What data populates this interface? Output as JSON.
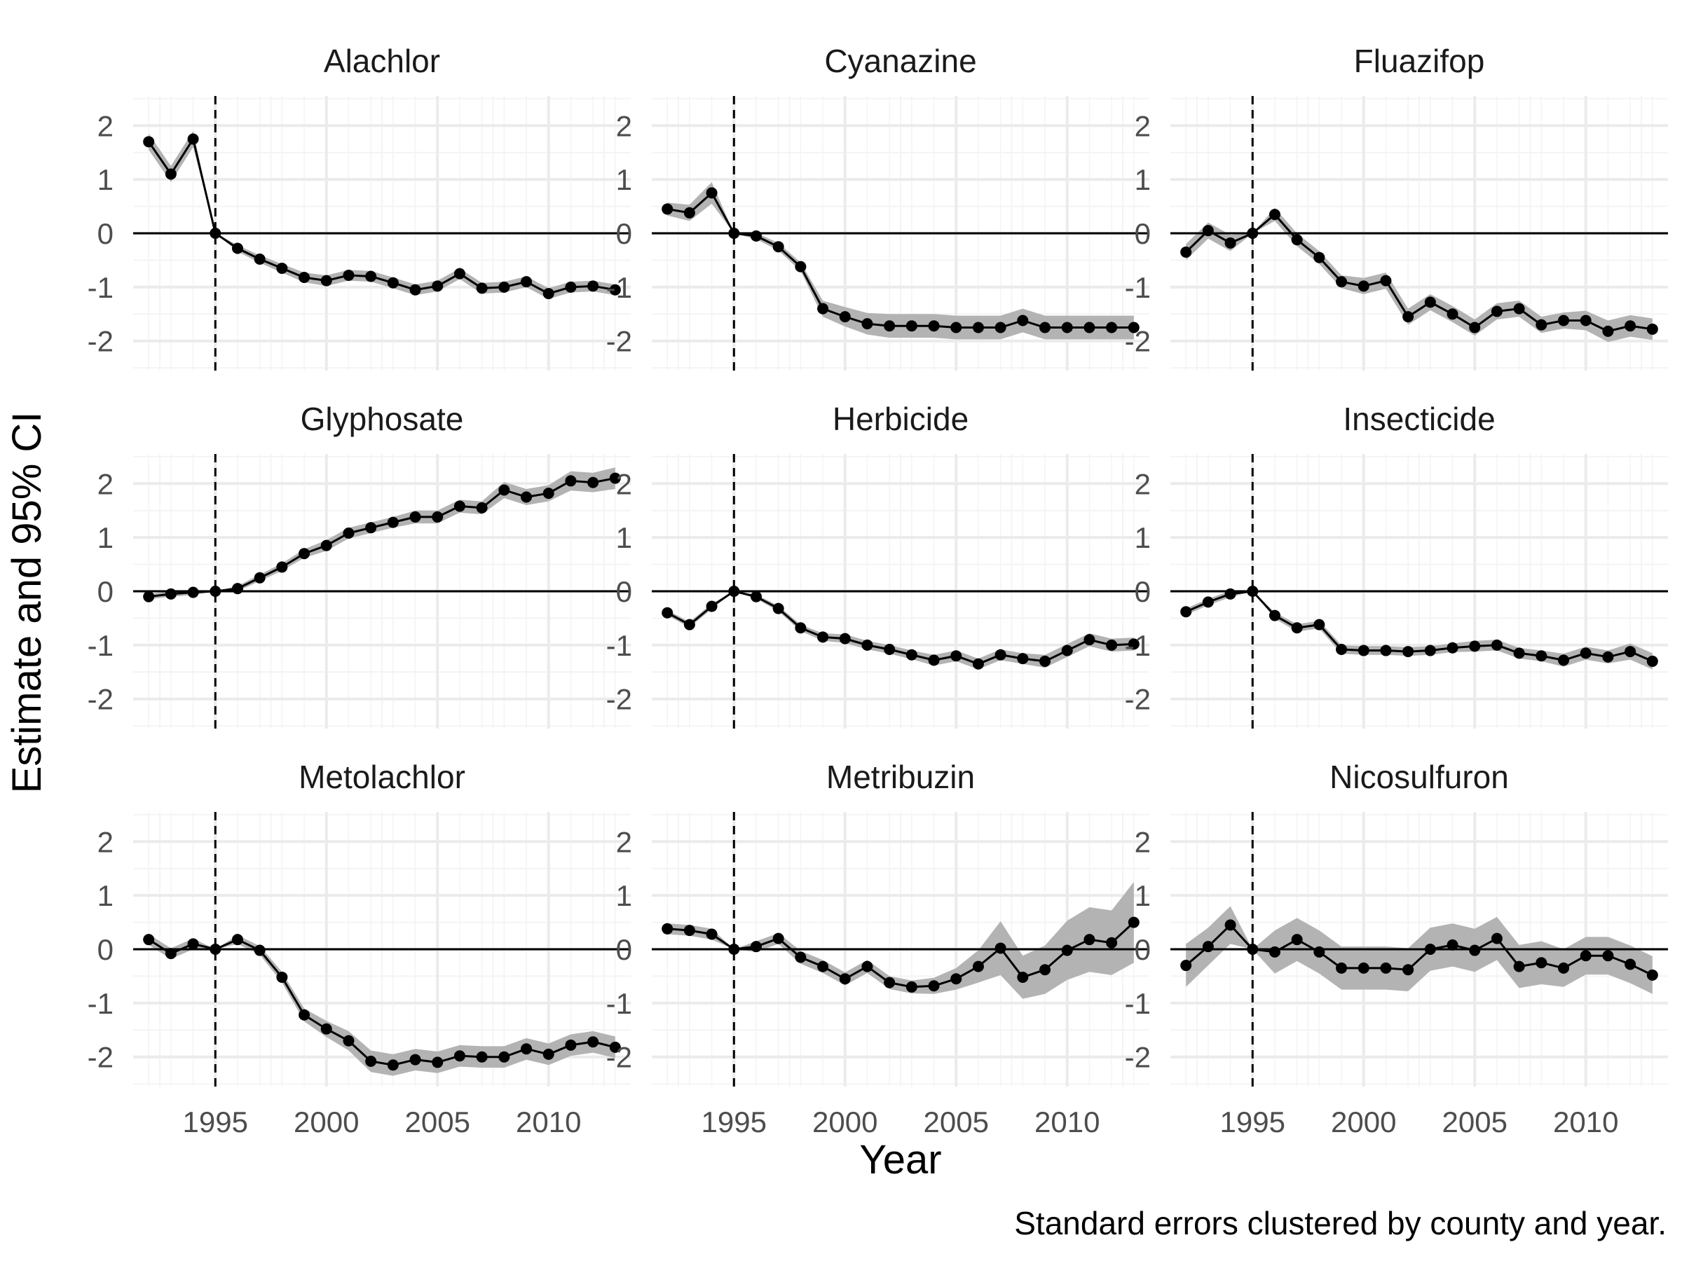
{
  "chart_data": {
    "type": "line",
    "layout": "facet_wrap 3x3",
    "xlabel": "Year",
    "ylabel": "Estimate and 95% CI",
    "caption": "Standard errors clustered by county and year.",
    "xlim": [
      1991.3,
      2013.7
    ],
    "ylim": [
      -2.55,
      2.55
    ],
    "x_ticks": [
      1995,
      2000,
      2005,
      2010
    ],
    "x_minor_ticks": [
      1992.5,
      1997.5,
      2002.5,
      2007.5,
      2012.5
    ],
    "y_ticks": [
      -2,
      -1,
      0,
      1,
      2
    ],
    "y_minor_ticks": [
      -2.5,
      -1.5,
      -0.5,
      0.5,
      1.5,
      2.5
    ],
    "reference_year": 1995,
    "grid": true,
    "colors": {
      "line": "#000000",
      "ribbon": "#b3b3b3",
      "grid_major": "#ebebeb",
      "grid_minor": "#f4f4f4"
    },
    "x": [
      1992,
      1993,
      1994,
      1995,
      1996,
      1997,
      1998,
      1999,
      2000,
      2001,
      2002,
      2003,
      2004,
      2005,
      2006,
      2007,
      2008,
      2009,
      2010,
      2011,
      2012,
      2013
    ],
    "panels": [
      {
        "title": "Alachlor",
        "values": [
          1.7,
          1.1,
          1.75,
          0,
          -0.28,
          -0.48,
          -0.65,
          -0.82,
          -0.88,
          -0.78,
          -0.8,
          -0.92,
          -1.05,
          -0.98,
          -0.75,
          -1.02,
          -1.0,
          -0.9,
          -1.12,
          -1.0,
          -0.98,
          -1.05
        ],
        "ci": [
          0.15,
          0.15,
          0.15,
          0.0,
          0.06,
          0.07,
          0.08,
          0.09,
          0.1,
          0.1,
          0.1,
          0.1,
          0.1,
          0.1,
          0.1,
          0.1,
          0.1,
          0.1,
          0.1,
          0.1,
          0.1,
          0.1
        ]
      },
      {
        "title": "Cyanazine",
        "values": [
          0.45,
          0.38,
          0.75,
          0,
          -0.05,
          -0.25,
          -0.62,
          -1.4,
          -1.55,
          -1.68,
          -1.72,
          -1.72,
          -1.72,
          -1.75,
          -1.75,
          -1.75,
          -1.62,
          -1.75,
          -1.75,
          -1.75,
          -1.75,
          -1.75
        ],
        "ci": [
          0.12,
          0.15,
          0.2,
          0.0,
          0.06,
          0.07,
          0.08,
          0.15,
          0.18,
          0.2,
          0.22,
          0.22,
          0.22,
          0.22,
          0.22,
          0.22,
          0.22,
          0.22,
          0.22,
          0.22,
          0.22,
          0.22
        ]
      },
      {
        "title": "Fluazifop",
        "values": [
          -0.35,
          0.05,
          -0.18,
          0,
          0.35,
          -0.12,
          -0.45,
          -0.9,
          -0.98,
          -0.88,
          -1.55,
          -1.28,
          -1.5,
          -1.75,
          -1.45,
          -1.4,
          -1.7,
          -1.62,
          -1.62,
          -1.82,
          -1.72,
          -1.78
        ],
        "ci": [
          0.15,
          0.15,
          0.15,
          0.0,
          0.12,
          0.12,
          0.12,
          0.12,
          0.15,
          0.15,
          0.15,
          0.15,
          0.15,
          0.15,
          0.15,
          0.15,
          0.15,
          0.15,
          0.18,
          0.2,
          0.2,
          0.2
        ]
      },
      {
        "title": "Glyphosate",
        "values": [
          -0.1,
          -0.05,
          -0.02,
          0,
          0.05,
          0.25,
          0.45,
          0.7,
          0.85,
          1.08,
          1.18,
          1.28,
          1.38,
          1.38,
          1.58,
          1.55,
          1.88,
          1.75,
          1.82,
          2.05,
          2.02,
          2.1
        ],
        "ci": [
          0.05,
          0.05,
          0.05,
          0.0,
          0.05,
          0.06,
          0.07,
          0.08,
          0.1,
          0.1,
          0.1,
          0.1,
          0.12,
          0.12,
          0.12,
          0.12,
          0.15,
          0.15,
          0.15,
          0.18,
          0.18,
          0.2
        ]
      },
      {
        "title": "Herbicide",
        "values": [
          -0.4,
          -0.62,
          -0.28,
          0,
          -0.1,
          -0.32,
          -0.68,
          -0.85,
          -0.88,
          -1.0,
          -1.08,
          -1.18,
          -1.28,
          -1.2,
          -1.35,
          -1.18,
          -1.25,
          -1.3,
          -1.1,
          -0.9,
          -1.0,
          -0.98
        ],
        "ci": [
          0.05,
          0.05,
          0.05,
          0.0,
          0.04,
          0.05,
          0.06,
          0.07,
          0.08,
          0.08,
          0.08,
          0.08,
          0.1,
          0.1,
          0.1,
          0.1,
          0.1,
          0.12,
          0.12,
          0.12,
          0.12,
          0.12
        ]
      },
      {
        "title": "Insecticide",
        "values": [
          -0.38,
          -0.2,
          -0.05,
          0,
          -0.45,
          -0.68,
          -0.62,
          -1.08,
          -1.1,
          -1.1,
          -1.12,
          -1.1,
          -1.05,
          -1.02,
          -1.0,
          -1.15,
          -1.2,
          -1.28,
          -1.15,
          -1.22,
          -1.12,
          -1.3
        ],
        "ci": [
          0.06,
          0.06,
          0.06,
          0.0,
          0.06,
          0.07,
          0.07,
          0.08,
          0.08,
          0.08,
          0.08,
          0.08,
          0.08,
          0.1,
          0.1,
          0.1,
          0.1,
          0.12,
          0.12,
          0.12,
          0.15,
          0.15
        ]
      },
      {
        "title": "Metolachlor",
        "values": [
          0.18,
          -0.08,
          0.1,
          0,
          0.18,
          -0.02,
          -0.52,
          -1.22,
          -1.48,
          -1.7,
          -2.08,
          -2.15,
          -2.05,
          -2.1,
          -1.98,
          -2.0,
          -2.0,
          -1.85,
          -1.95,
          -1.78,
          -1.72,
          -1.82
        ],
        "ci": [
          0.1,
          0.1,
          0.1,
          0.0,
          0.08,
          0.08,
          0.1,
          0.12,
          0.15,
          0.18,
          0.2,
          0.2,
          0.2,
          0.2,
          0.2,
          0.2,
          0.2,
          0.2,
          0.2,
          0.2,
          0.2,
          0.2
        ]
      },
      {
        "title": "Metribuzin",
        "values": [
          0.38,
          0.35,
          0.28,
          0,
          0.05,
          0.2,
          -0.15,
          -0.32,
          -0.55,
          -0.32,
          -0.62,
          -0.7,
          -0.68,
          -0.55,
          -0.32,
          0.02,
          -0.52,
          -0.38,
          -0.02,
          0.18,
          0.12,
          0.5
        ],
        "ci": [
          0.1,
          0.1,
          0.1,
          0.0,
          0.1,
          0.1,
          0.12,
          0.12,
          0.12,
          0.12,
          0.12,
          0.12,
          0.15,
          0.2,
          0.3,
          0.5,
          0.4,
          0.45,
          0.55,
          0.6,
          0.6,
          0.75
        ]
      },
      {
        "title": "Nicosulfuron",
        "values": [
          -0.3,
          0.05,
          0.45,
          0,
          -0.05,
          0.18,
          -0.05,
          -0.35,
          -0.35,
          -0.35,
          -0.38,
          0.0,
          0.08,
          -0.02,
          0.2,
          -0.32,
          -0.25,
          -0.35,
          -0.12,
          -0.12,
          -0.28,
          -0.48
        ],
        "ci": [
          0.4,
          0.35,
          0.35,
          0.0,
          0.4,
          0.4,
          0.4,
          0.4,
          0.4,
          0.4,
          0.4,
          0.4,
          0.4,
          0.4,
          0.4,
          0.4,
          0.4,
          0.35,
          0.35,
          0.35,
          0.35,
          0.35
        ]
      }
    ]
  }
}
